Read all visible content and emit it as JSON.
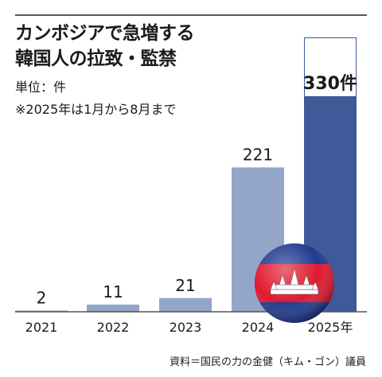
{
  "title_lines": [
    "カンボジアで急増する",
    "韓国人の拉致・監禁"
  ],
  "unit_label": "単位：件",
  "note": "※2025年は1月から8月まで",
  "source": "資料＝国民の力の金健（キム・ゴン）議員",
  "colors": {
    "bar_past": "#93a5c8",
    "bar_current": "#3f5a99",
    "axis": "#555555",
    "flag_red": "#e0192f",
    "flag_blue": "#1f3b8f"
  },
  "chart_data": {
    "type": "bar",
    "categories": [
      "2021",
      "2022",
      "2023",
      "2024",
      "2025年"
    ],
    "values": [
      2,
      11,
      21,
      221,
      330
    ],
    "value_labels": [
      "2",
      "11",
      "21",
      "221",
      "330件"
    ],
    "ylim": [
      0,
      420
    ],
    "grid": false,
    "icon": "cambodia-flag-icon"
  }
}
